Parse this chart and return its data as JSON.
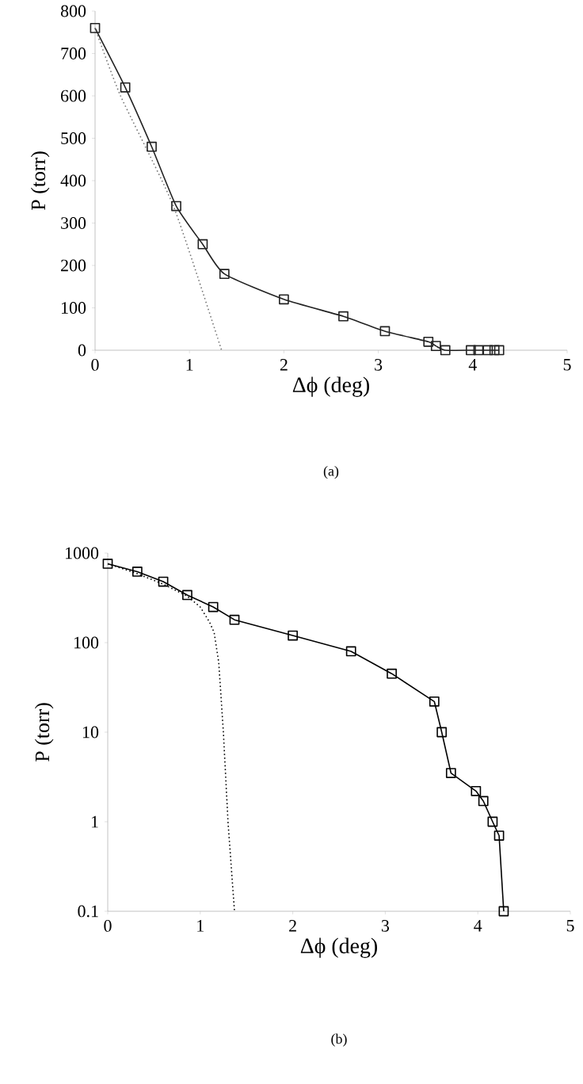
{
  "chart_data": [
    {
      "type": "line",
      "xlabel": "Δϕ (deg)",
      "ylabel": "P (torr)",
      "annotations": [
        "(a)"
      ],
      "xlim": [
        0,
        5
      ],
      "ylim": [
        0,
        800
      ],
      "xticks": [
        0,
        1,
        2,
        3,
        4,
        5
      ],
      "yticks": [
        0,
        100,
        200,
        300,
        400,
        500,
        600,
        700,
        800
      ],
      "grid": false,
      "series": [
        {
          "color": "#222222",
          "marker": "square",
          "line_style": "solid",
          "x": [
            0,
            0.32,
            0.6,
            0.86,
            1.14,
            1.37,
            2.0,
            2.63,
            3.07,
            3.53,
            3.61,
            3.71,
            3.98,
            4.06,
            4.16,
            4.23,
            4.28
          ],
          "values": [
            760,
            620,
            480,
            340,
            250,
            180,
            120,
            80,
            45,
            20,
            10,
            0,
            0,
            0,
            0,
            0,
            0
          ]
        },
        {
          "color": "#777777",
          "marker": "none",
          "line_style": "dotted",
          "x": [
            0,
            0.27,
            0.83,
            1.34
          ],
          "values": [
            760,
            600,
            340,
            0
          ]
        }
      ]
    },
    {
      "type": "line",
      "xlabel": "Δϕ (deg)",
      "ylabel": "P (torr)",
      "annotations": [
        "(b)"
      ],
      "xlim": [
        0,
        5
      ],
      "ylim": [
        0.1,
        1000
      ],
      "xticks": [
        0,
        1,
        2,
        3,
        4,
        5
      ],
      "yticks": [
        0.1,
        1,
        10,
        100,
        1000
      ],
      "log": "y",
      "grid": false,
      "series": [
        {
          "color": "#000000",
          "marker": "square",
          "line_style": "solid",
          "x": [
            0,
            0.32,
            0.6,
            0.86,
            1.14,
            1.37,
            2.0,
            2.63,
            3.07,
            3.53,
            3.61,
            3.71,
            3.98,
            4.06,
            4.16,
            4.23,
            4.28
          ],
          "values": [
            760,
            620,
            480,
            340,
            250,
            180,
            120,
            80,
            45,
            22,
            10,
            3.5,
            2.2,
            1.7,
            1.0,
            0.7,
            0.1
          ]
        },
        {
          "color": "#000000",
          "marker": "none",
          "line_style": "dotted",
          "x": [
            0,
            0.3,
            0.6,
            0.86,
            1.0,
            1.1,
            1.15,
            1.2,
            1.25,
            1.3,
            1.37
          ],
          "values": [
            760,
            600,
            450,
            330,
            250,
            170,
            130,
            60,
            10,
            1,
            0.1
          ]
        }
      ]
    }
  ]
}
